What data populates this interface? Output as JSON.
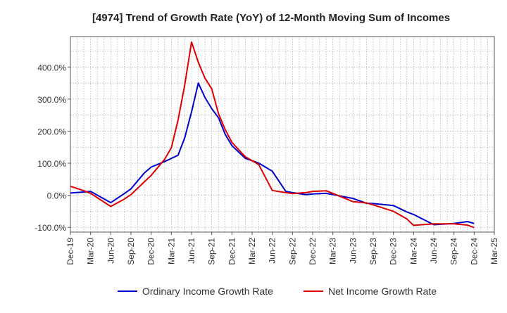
{
  "chart_data": {
    "type": "line",
    "title": "[4974]  Trend of Growth Rate (YoY) of 12-Month Moving Sum of Incomes",
    "xlabel": "",
    "ylabel": "",
    "ylim": [
      -115,
      495
    ],
    "yticks": [
      -100,
      0,
      100,
      200,
      300,
      400
    ],
    "ytick_labels": [
      "-100.0%",
      "0.0%",
      "100.0%",
      "200.0%",
      "300.0%",
      "400.0%"
    ],
    "x_range": [
      0,
      63
    ],
    "xtick_positions": [
      0,
      3,
      6,
      9,
      12,
      15,
      18,
      21,
      24,
      27,
      30,
      33,
      36,
      39,
      42,
      45,
      48,
      51,
      54,
      57,
      60,
      63
    ],
    "xtick_labels": [
      "Dec-19",
      "Mar-20",
      "Jun-20",
      "Sep-20",
      "Dec-20",
      "Mar-21",
      "Jun-21",
      "Sep-21",
      "Dec-21",
      "Mar-22",
      "Jun-22",
      "Sep-22",
      "Dec-22",
      "Mar-23",
      "Jun-23",
      "Sep-23",
      "Dec-23",
      "Mar-24",
      "Jun-24",
      "Sep-24",
      "Dec-24",
      "Mar-25"
    ],
    "grid": true,
    "legend": "bottom",
    "series": [
      {
        "name": "Ordinary Income Growth Rate",
        "color": "#0000cc",
        "x": [
          0,
          2,
          3,
          6,
          8,
          9,
          11,
          12,
          14,
          15,
          16,
          17,
          18,
          19,
          20,
          21,
          22,
          23,
          24,
          26,
          27,
          28,
          30,
          32,
          33,
          35,
          36,
          38,
          39,
          42,
          44,
          45,
          48,
          50,
          51,
          54,
          57,
          59,
          60
        ],
        "y": [
          7,
          10,
          12,
          -23,
          5,
          20,
          70,
          88,
          105,
          115,
          125,
          180,
          260,
          350,
          305,
          270,
          242,
          190,
          155,
          115,
          108,
          100,
          75,
          12,
          8,
          2,
          4,
          6,
          2,
          -10,
          -25,
          -26,
          -32,
          -52,
          -60,
          -92,
          -88,
          -82,
          -88
        ]
      },
      {
        "name": "Net Income Growth Rate",
        "color": "#dd0000",
        "x": [
          0,
          2,
          3,
          6,
          8,
          9,
          11,
          12,
          14,
          15,
          16,
          17,
          18,
          19,
          20,
          21,
          22,
          23,
          24,
          26,
          27,
          28,
          30,
          32,
          33,
          35,
          36,
          38,
          39,
          42,
          44,
          45,
          48,
          50,
          51,
          54,
          57,
          59,
          60
        ],
        "y": [
          28,
          14,
          6,
          -35,
          -12,
          2,
          42,
          62,
          112,
          148,
          235,
          345,
          478,
          415,
          365,
          332,
          255,
          205,
          165,
          120,
          108,
          95,
          15,
          8,
          5,
          8,
          12,
          14,
          6,
          -20,
          -24,
          -30,
          -50,
          -74,
          -94,
          -89,
          -89,
          -93,
          -101
        ]
      }
    ]
  }
}
